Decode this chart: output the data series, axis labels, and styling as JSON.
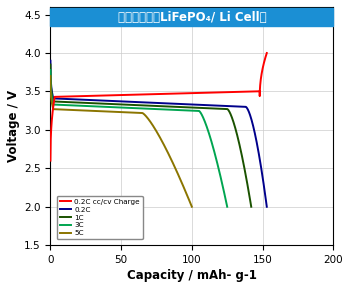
{
  "title": "従来混練機（LiFePO₄/ Li Cell）",
  "xlabel": "Capacity / mAh- g-1",
  "ylabel": "Voltage / V",
  "xlim": [
    0,
    200
  ],
  "ylim": [
    1.5,
    4.6
  ],
  "yticks": [
    1.5,
    2.0,
    2.5,
    3.0,
    3.5,
    4.0,
    4.5
  ],
  "xticks": [
    0,
    50,
    100,
    150,
    200
  ],
  "title_bg_color": "#1B8FD4",
  "title_text_color": "#FFFFFF",
  "bg_color": "#FFFFFF",
  "grid_color": "#CCCCCC",
  "legend_entries": [
    {
      "label": "0.2C cc/cv Charge",
      "color": "#FF0000"
    },
    {
      "label": "0.2C",
      "color": "#00008B"
    },
    {
      "label": "1C",
      "color": "#1A5200"
    },
    {
      "label": "3C",
      "color": "#00A550"
    },
    {
      "label": "5C",
      "color": "#8B7500"
    }
  ]
}
